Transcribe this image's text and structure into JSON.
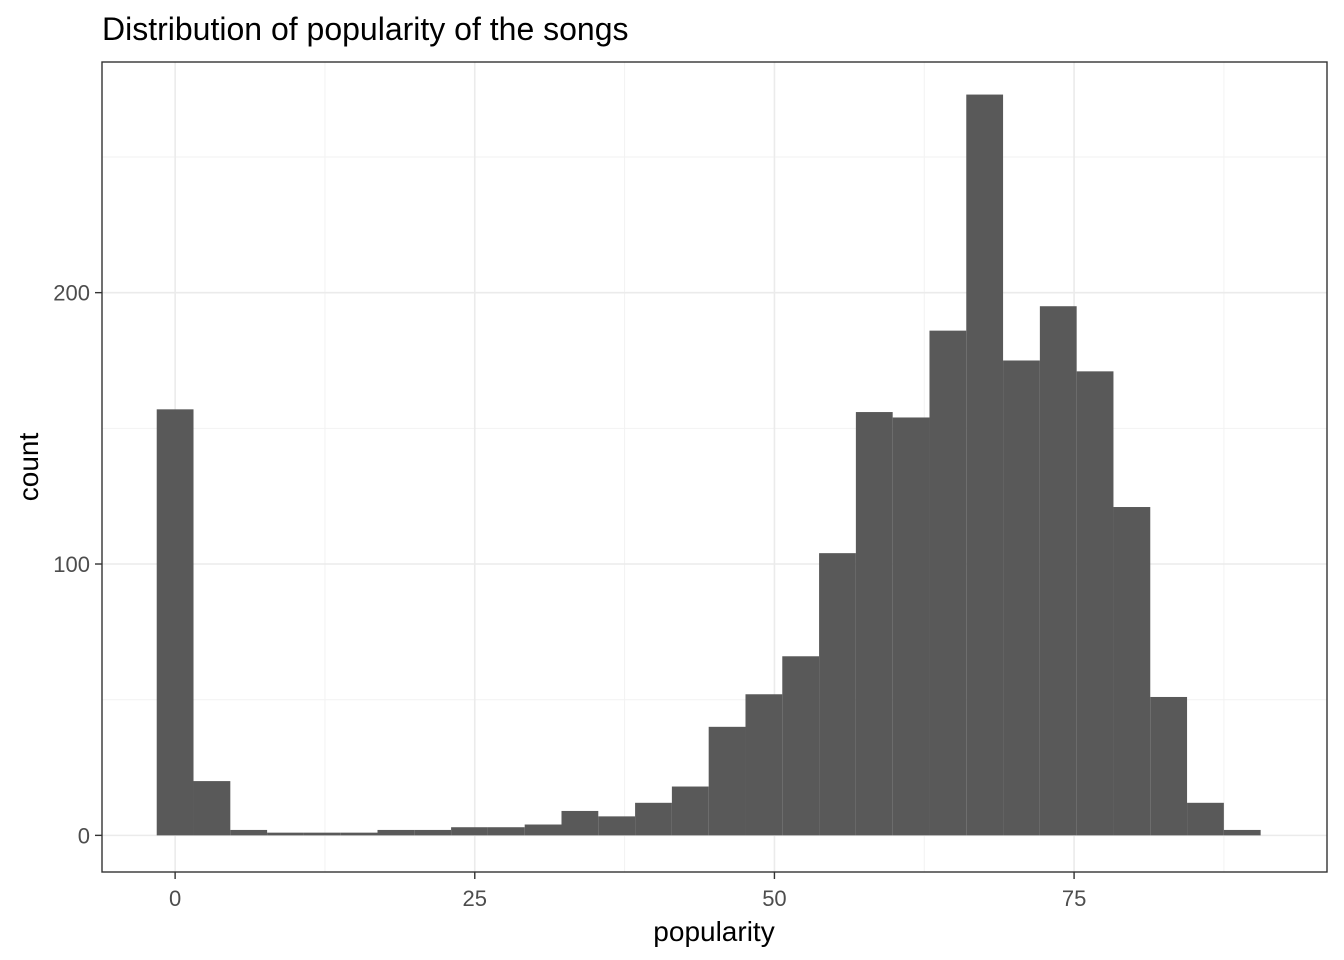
{
  "chart_data": {
    "type": "bar",
    "subtype": "histogram",
    "title": "Distribution of popularity of the songs",
    "xlabel": "popularity",
    "ylabel": "count",
    "xlim": [
      -6.1,
      96.1
    ],
    "ylim": [
      -13.5,
      285
    ],
    "x_ticks": [
      0,
      25,
      50,
      75
    ],
    "x_tick_labels": [
      "0",
      "25",
      "50",
      "75"
    ],
    "y_ticks": [
      0,
      100,
      200
    ],
    "y_tick_labels": [
      "0",
      "100",
      "200"
    ],
    "bin_width": 3.07,
    "bin_start": -1.535,
    "values": [
      157,
      20,
      2,
      1,
      1,
      1,
      2,
      2,
      3,
      3,
      4,
      9,
      7,
      12,
      18,
      40,
      52,
      66,
      104,
      156,
      154,
      186,
      273,
      175,
      195,
      171,
      121,
      51,
      12,
      2
    ],
    "bar_color": "#595959",
    "background": "#ffffff",
    "grid": true,
    "legend": "none"
  }
}
